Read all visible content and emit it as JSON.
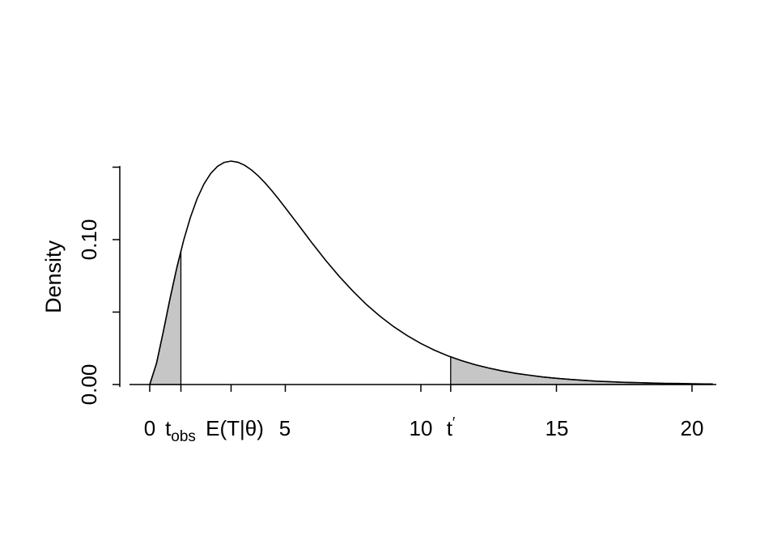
{
  "figure": {
    "background": "#ffffff",
    "curve_color": "#000000",
    "fill_color": "#c6c6c6",
    "axis_color": "#000000"
  },
  "chart_data": {
    "type": "area",
    "title": "",
    "xlabel": "",
    "ylabel": "Density",
    "xlim": [
      0,
      20.75
    ],
    "ylim": [
      0,
      0.15
    ],
    "grid": false,
    "legend": "none",
    "x_ticks": [
      0,
      5,
      10,
      15,
      20
    ],
    "x_tick_labels": [
      "0",
      "5",
      "10",
      "15",
      "20"
    ],
    "y_ticks": [
      0,
      0.05,
      0.1,
      0.15
    ],
    "y_tick_labels": [
      "0.00",
      "",
      "0.10",
      ""
    ],
    "curve": {
      "x": [
        0,
        0.25,
        0.5,
        0.75,
        1,
        1.25,
        1.5,
        1.75,
        2,
        2.25,
        2.5,
        2.75,
        3,
        3.25,
        3.5,
        3.75,
        4,
        4.25,
        4.5,
        4.75,
        5,
        5.5,
        6,
        6.5,
        7,
        7.5,
        8,
        8.5,
        9,
        9.5,
        10,
        10.5,
        11,
        11.5,
        12,
        12.5,
        13,
        13.5,
        14,
        14.5,
        15,
        15.5,
        16,
        16.5,
        17,
        17.5,
        18,
        18.5,
        19,
        19.5,
        20,
        20.5,
        20.75
      ],
      "y": [
        0,
        0.0147,
        0.0366,
        0.0594,
        0.0807,
        0.0995,
        0.1154,
        0.1283,
        0.1384,
        0.1457,
        0.1506,
        0.1533,
        0.1542,
        0.1534,
        0.1513,
        0.1481,
        0.144,
        0.1392,
        0.1338,
        0.1281,
        0.122,
        0.1097,
        0.0973,
        0.0854,
        0.0744,
        0.0643,
        0.0551,
        0.047,
        0.0399,
        0.0337,
        0.0283,
        0.0237,
        0.0198,
        0.0165,
        0.0137,
        0.0114,
        0.0094,
        0.0077,
        0.0064,
        0.0052,
        0.0043,
        0.0035,
        0.0029,
        0.0023,
        0.0019,
        0.0015,
        0.0013,
        0.001,
        0.0008,
        0.0007,
        0.0005,
        0.0004,
        0.0004
      ]
    },
    "shaded_regions": [
      {
        "from": 0,
        "to": 1.15
      },
      {
        "from": 11.1,
        "to": 20.75
      }
    ],
    "markers": [
      {
        "value": 1.15,
        "label_base": "t",
        "label_sub": "obs"
      },
      {
        "value": 3.0,
        "label": "E(T|θ)"
      },
      {
        "value": 11.1,
        "label_base": "t",
        "label_sup": "′"
      }
    ]
  }
}
